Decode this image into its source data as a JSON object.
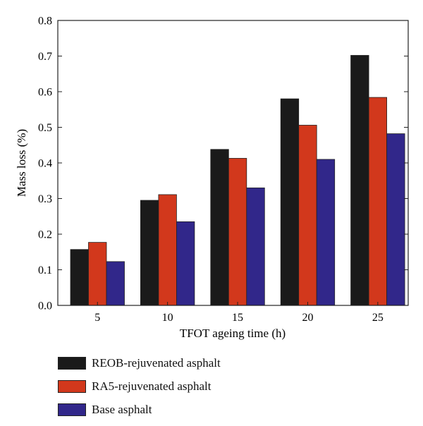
{
  "chart_data": {
    "type": "bar",
    "title": "",
    "xlabel": "TFOT ageing time (h)",
    "ylabel": "Mass loss (%)",
    "categories": [
      "5",
      "10",
      "15",
      "20",
      "25"
    ],
    "ylim": [
      0,
      0.8
    ],
    "yticks": [
      "0.0",
      "0.1",
      "0.2",
      "0.3",
      "0.4",
      "0.5",
      "0.6",
      "0.7",
      "0.8"
    ],
    "legend_position": "bottom",
    "grid": false,
    "series": [
      {
        "name": "REOB-rejuvenated asphalt",
        "color": "#1a1a1a",
        "values": [
          0.157,
          0.295,
          0.438,
          0.58,
          0.702
        ]
      },
      {
        "name": "RA5-rejuvenated asphalt",
        "color": "#d2381c",
        "values": [
          0.177,
          0.311,
          0.413,
          0.506,
          0.584
        ]
      },
      {
        "name": "Base asphalt",
        "color": "#31278a",
        "values": [
          0.123,
          0.235,
          0.33,
          0.41,
          0.482
        ]
      }
    ]
  }
}
